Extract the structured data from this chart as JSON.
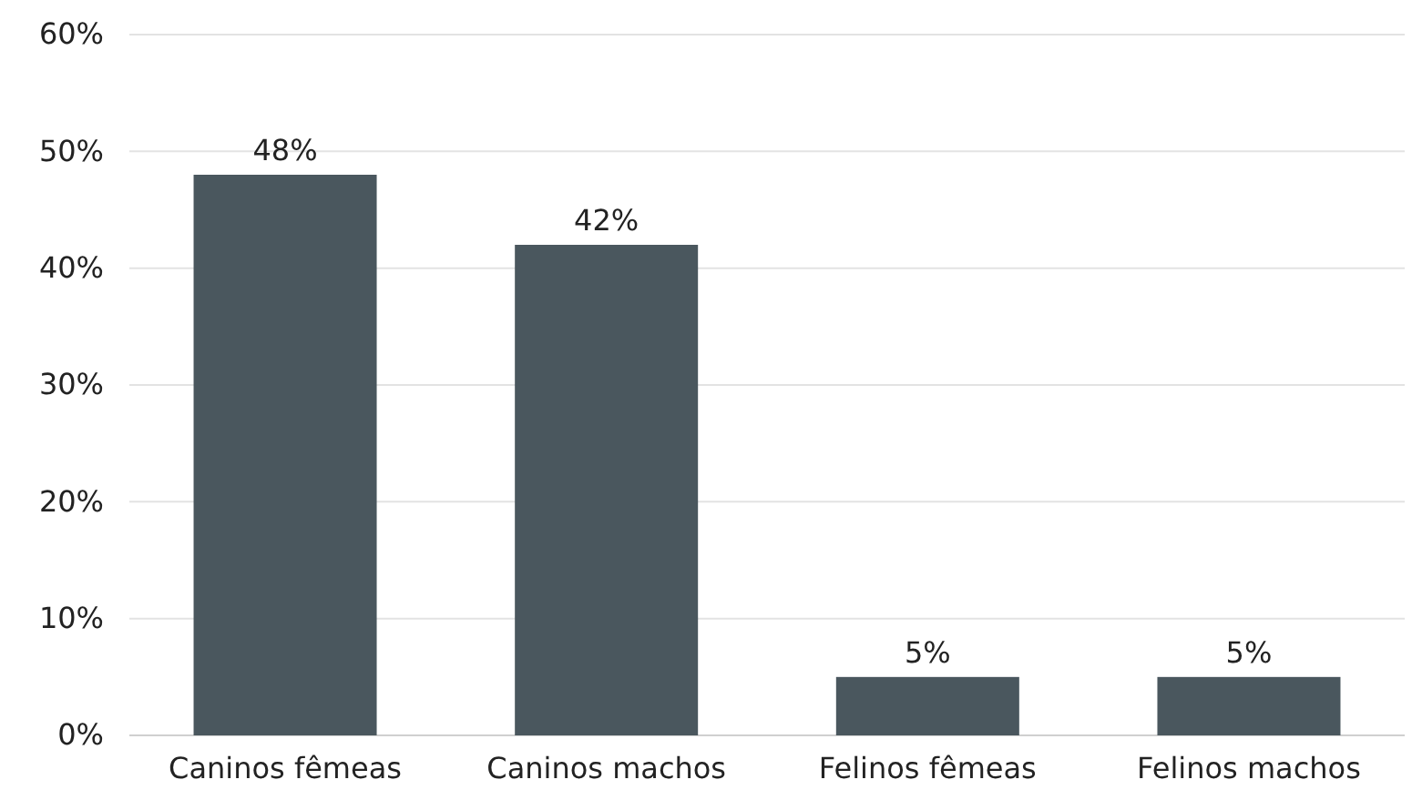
{
  "chart_data": {
    "type": "bar",
    "categories": [
      "Caninos fêmeas",
      "Caninos machos",
      "Felinos fêmeas",
      "Felinos machos"
    ],
    "values": [
      48,
      42,
      5,
      5
    ],
    "color": "#4a575e",
    "ylim": [
      0,
      60
    ],
    "yticks": [
      {
        "value": 0,
        "label": "0%"
      },
      {
        "value": 10,
        "label": "10%"
      },
      {
        "value": 20,
        "label": "20%"
      },
      {
        "value": 30,
        "label": "30%"
      },
      {
        "value": 40,
        "label": "40%"
      },
      {
        "value": 50,
        "label": "50%"
      },
      {
        "value": 60,
        "label": "60%"
      }
    ],
    "value_labels": [
      "48%",
      "42%",
      "5%",
      "5%"
    ],
    "grid": "y"
  }
}
